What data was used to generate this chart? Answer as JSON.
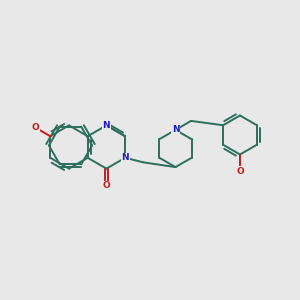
{
  "bg_color": "#e8e8e8",
  "bond_color": "#2d6e5c",
  "N_color": "#1a1acc",
  "O_color": "#cc1a1a",
  "bond_lw": 1.4,
  "figsize": [
    3.0,
    3.0
  ],
  "dpi": 100,
  "xlim": [
    0,
    10
  ],
  "ylim": [
    0,
    10
  ]
}
